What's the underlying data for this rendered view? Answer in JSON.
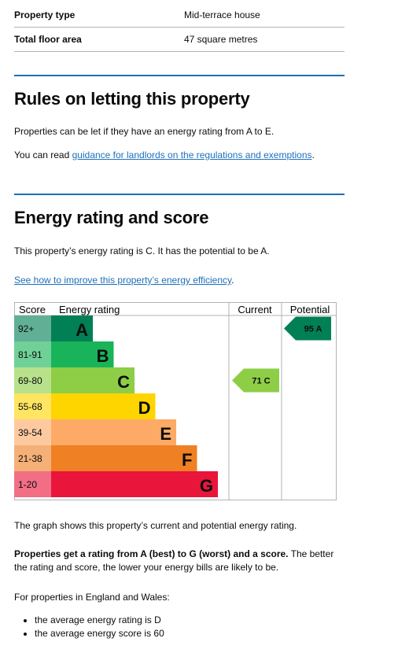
{
  "summary": {
    "rows": [
      {
        "label": "Property type",
        "value": "Mid-terrace house"
      },
      {
        "label": "Total floor area",
        "value": "47 square metres"
      }
    ]
  },
  "letting": {
    "heading": "Rules on letting this property",
    "para1": "Properties can be let if they have an energy rating from A to E.",
    "para2_prefix": "You can read ",
    "para2_link": "guidance for landlords on the regulations and exemptions",
    "para2_suffix": "."
  },
  "energy": {
    "heading": "Energy rating and score",
    "intro": "This property’s energy rating is C. It has the potential to be A.",
    "improve_link": "See how to improve this property’s energy efficiency",
    "improve_suffix": ".",
    "graph_note": "The graph shows this property’s current and potential energy rating.",
    "bold_text": "Properties get a rating from A (best) to G (worst) and a score.",
    "rest_text": " The better the rating and score, the lower your energy bills are likely to be.",
    "regions_intro": "For properties in England and Wales:",
    "bullets": [
      "the average energy rating is D",
      "the average energy score is 60"
    ]
  },
  "chart_data": {
    "type": "bar",
    "headers": {
      "score": "Score",
      "rating": "Energy rating",
      "current": "Current",
      "potential": "Potential"
    },
    "bands": [
      {
        "score": "92+",
        "letter": "A",
        "color": "#008054"
      },
      {
        "score": "81-91",
        "letter": "B",
        "color": "#19b459"
      },
      {
        "score": "69-80",
        "letter": "C",
        "color": "#8dce46"
      },
      {
        "score": "55-68",
        "letter": "D",
        "color": "#ffd500"
      },
      {
        "score": "39-54",
        "letter": "E",
        "color": "#fcaa65"
      },
      {
        "score": "21-38",
        "letter": "F",
        "color": "#ef8023"
      },
      {
        "score": "1-20",
        "letter": "G",
        "color": "#e9153b"
      }
    ],
    "current": {
      "score": 71,
      "band": "C",
      "label": "71 C"
    },
    "potential": {
      "score": 95,
      "band": "A",
      "label": "95 A"
    }
  }
}
